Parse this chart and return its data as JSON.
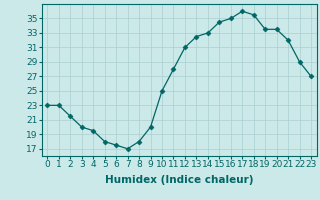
{
  "x": [
    0,
    1,
    2,
    3,
    4,
    5,
    6,
    7,
    8,
    9,
    10,
    11,
    12,
    13,
    14,
    15,
    16,
    17,
    18,
    19,
    20,
    21,
    22,
    23
  ],
  "y": [
    23,
    23,
    21.5,
    20,
    19.5,
    18,
    17.5,
    17,
    18,
    20,
    25,
    28,
    31,
    32.5,
    33,
    34.5,
    35,
    36,
    35.5,
    33.5,
    33.5,
    32,
    29,
    27
  ],
  "line_color": "#006666",
  "marker": "D",
  "marker_size": 2.5,
  "bg_color": "#cce9e9",
  "grid_color": "#aacfcf",
  "xlabel": "Humidex (Indice chaleur)",
  "ylim": [
    16,
    37
  ],
  "xlim": [
    -0.5,
    23.5
  ],
  "yticks": [
    17,
    19,
    21,
    23,
    25,
    27,
    29,
    31,
    33,
    35
  ],
  "xticks": [
    0,
    1,
    2,
    3,
    4,
    5,
    6,
    7,
    8,
    9,
    10,
    11,
    12,
    13,
    14,
    15,
    16,
    17,
    18,
    19,
    20,
    21,
    22,
    23
  ],
  "tick_label_fontsize": 6.5,
  "xlabel_fontsize": 7.5
}
